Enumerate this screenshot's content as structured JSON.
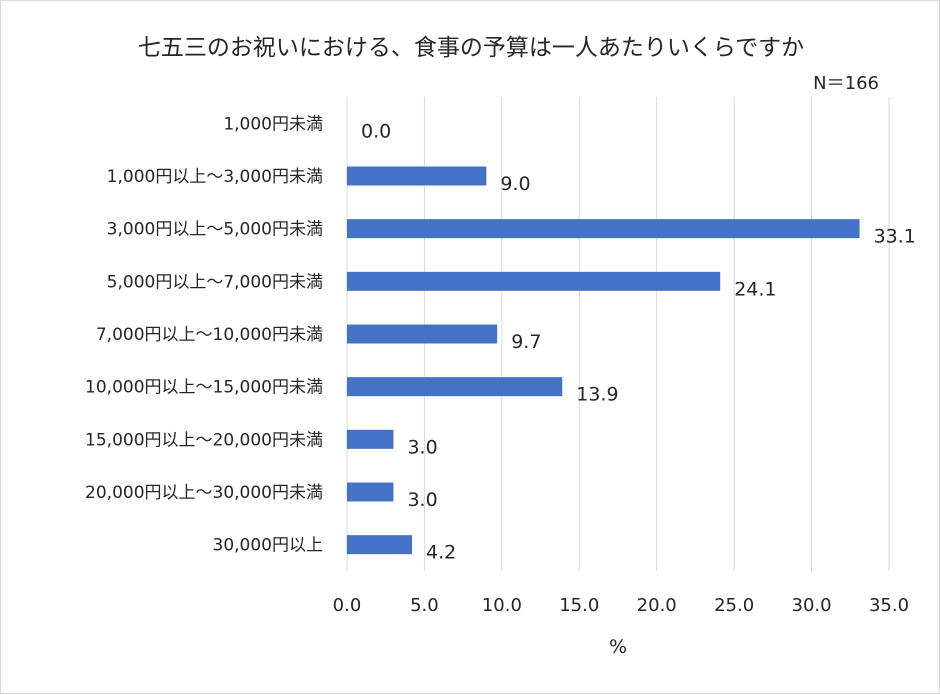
{
  "chart_data": {
    "type": "bar",
    "orientation": "horizontal",
    "title": "七五三のお祝いにおける、食事の予算は一人あたりいくらですか",
    "sample_note": "N＝166",
    "xlabel": "%",
    "ylabel": "",
    "xlim": [
      0,
      35
    ],
    "x_ticks": [
      "0.0",
      "5.0",
      "10.0",
      "15.0",
      "20.0",
      "25.0",
      "30.0",
      "35.0"
    ],
    "grid": "vertical",
    "bar_color": "#4472c4",
    "categories": [
      "1,000円未満",
      "1,000円以上～3,000円未満",
      "3,000円以上～5,000円未満",
      "5,000円以上～7,000円未満",
      "7,000円以上～10,000円未満",
      "10,000円以上～15,000円未満",
      "15,000円以上～20,000円未満",
      "20,000円以上～30,000円未満",
      "30,000円以上"
    ],
    "values": [
      0.0,
      9.0,
      33.1,
      24.1,
      9.7,
      13.9,
      3.0,
      3.0,
      4.2
    ],
    "value_labels": [
      "0.0",
      "9.0",
      "33.1",
      "24.1",
      "9.7",
      "13.9",
      "3.0",
      "3.0",
      "4.2"
    ]
  }
}
